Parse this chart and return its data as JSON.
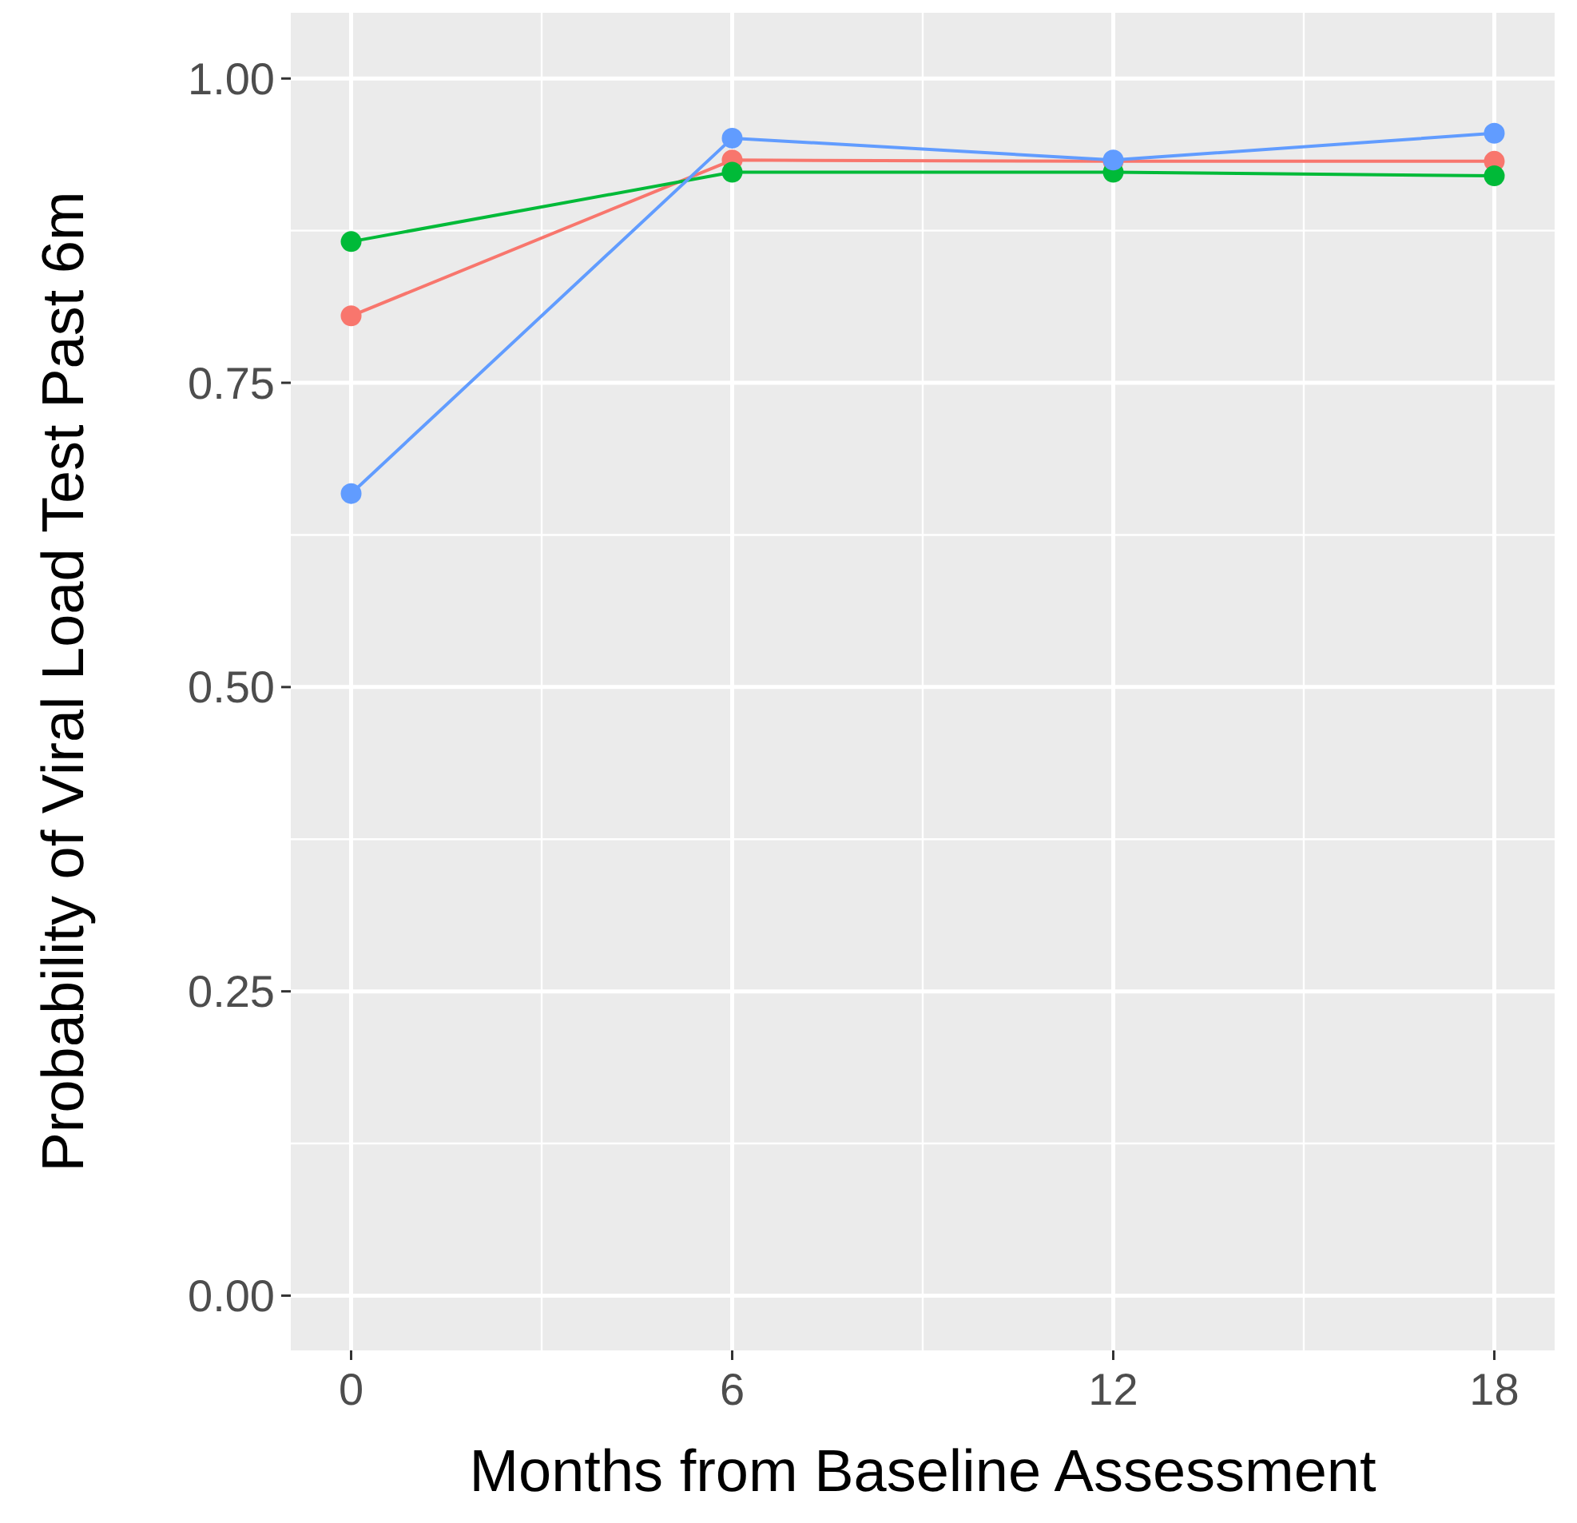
{
  "chart_data": {
    "type": "line",
    "xlabel": "Months from Baseline Assessment",
    "ylabel": "Probability of Viral Load Test Past 6m",
    "x": [
      0,
      6,
      12,
      18
    ],
    "series": [
      {
        "color": "#f8766d",
        "values": [
          0.805,
          0.933,
          0.932,
          0.932
        ]
      },
      {
        "color": "#00ba38",
        "values": [
          0.866,
          0.923,
          0.923,
          0.92
        ]
      },
      {
        "color": "#619cff",
        "values": [
          0.659,
          0.951,
          0.933,
          0.955
        ]
      }
    ],
    "xlim": [
      -0.95,
      18.95
    ],
    "ylim": [
      -0.045,
      1.054
    ],
    "xticks": [
      0,
      6,
      12,
      18
    ],
    "yticks": [
      {
        "value": 0,
        "label": "0.00"
      },
      {
        "value": 0.25,
        "label": "0.25"
      },
      {
        "value": 0.5,
        "label": "0.50"
      },
      {
        "value": 0.75,
        "label": "0.75"
      },
      {
        "value": 1,
        "label": "1.00"
      }
    ],
    "grid": true,
    "marker": "circle",
    "line_style": "solid"
  }
}
